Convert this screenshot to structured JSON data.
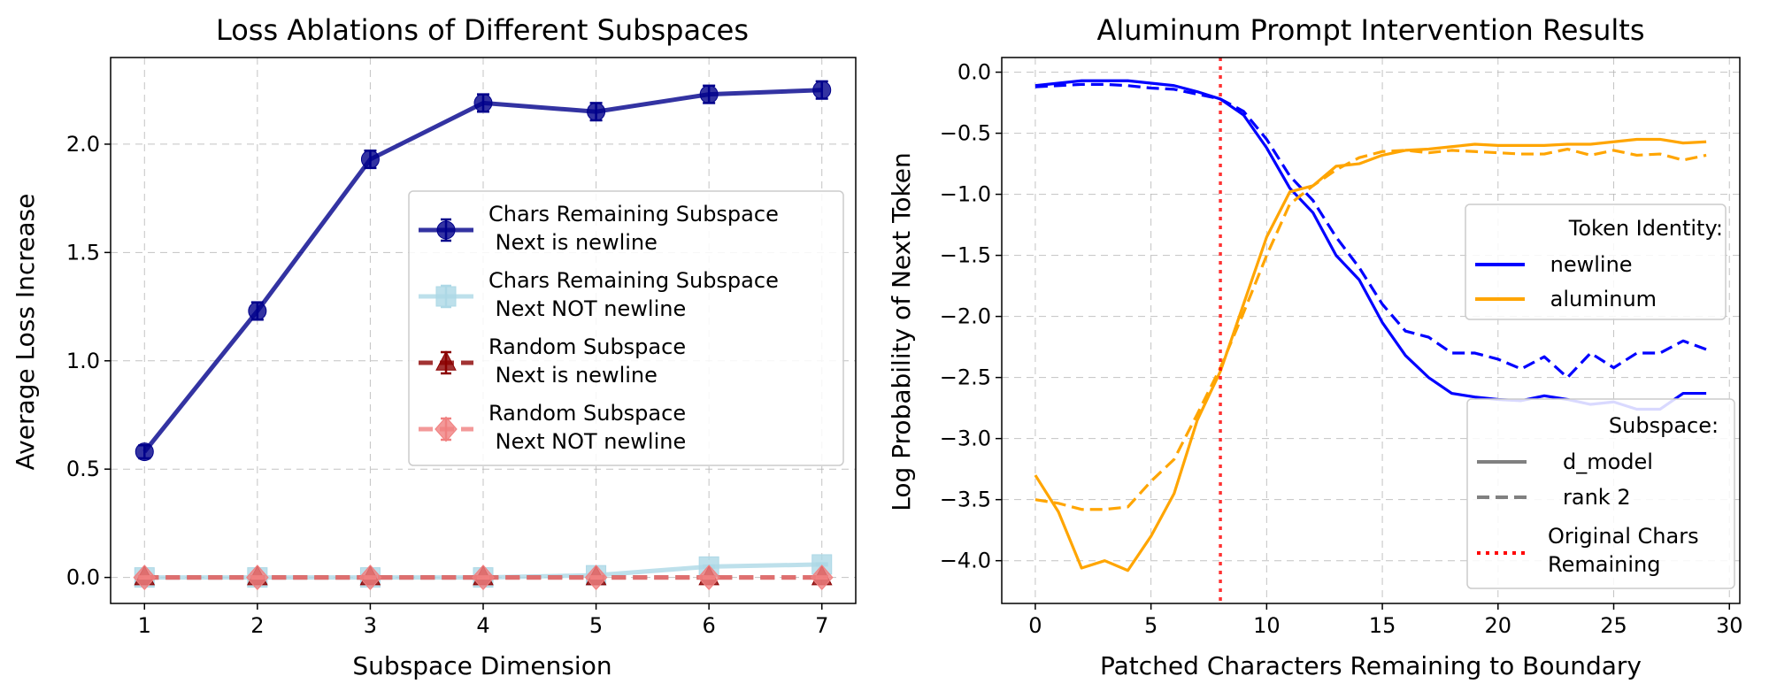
{
  "colors": {
    "chars_newline": "#00008b",
    "chars_not_newline": "#add8e6",
    "random_newline": "#8b0000",
    "random_not_newline": "#f08080",
    "newline": "#0000ff",
    "aluminum": "#ffa500",
    "subspace_legend": "#808080",
    "boundary": "#ff0000"
  },
  "chart_data": [
    {
      "type": "line",
      "title": "Loss Ablations of Different Subspaces",
      "xlabel": "Subspace Dimension",
      "ylabel": "Average Loss Increase",
      "xlim": [
        0.7,
        7.3
      ],
      "ylim": [
        -0.12,
        2.4
      ],
      "xticks": [
        "1",
        "2",
        "3",
        "4",
        "5",
        "6",
        "7"
      ],
      "yticks": [
        "0.0",
        "0.5",
        "1.0",
        "1.5",
        "2.0"
      ],
      "grid": true,
      "legend_position": "center-right",
      "x": [
        1,
        2,
        3,
        4,
        5,
        6,
        7
      ],
      "series": [
        {
          "name": "Chars Remaining Subspace\n Next is newline",
          "legend_lines": [
            "Chars Remaining Subspace",
            " Next is newline"
          ],
          "values": [
            0.58,
            1.23,
            1.93,
            2.19,
            2.15,
            2.23,
            2.25
          ],
          "error": [
            0.03,
            0.04,
            0.04,
            0.04,
            0.04,
            0.04,
            0.04
          ],
          "marker": "circle",
          "style": "solid"
        },
        {
          "name": "Chars Remaining Subspace\n Next NOT newline",
          "legend_lines": [
            "Chars Remaining Subspace",
            " Next NOT newline"
          ],
          "values": [
            0.0,
            0.0,
            0.0,
            0.0,
            0.01,
            0.05,
            0.06
          ],
          "error": [
            0.005,
            0.005,
            0.005,
            0.005,
            0.005,
            0.005,
            0.005
          ],
          "marker": "square",
          "style": "solid"
        },
        {
          "name": "Random Subspace\n Next is newline",
          "legend_lines": [
            "Random Subspace",
            " Next is newline"
          ],
          "values": [
            0.0,
            0.0,
            0.0,
            0.0,
            0.0,
            0.0,
            0.0
          ],
          "error": [
            0.005,
            0.005,
            0.005,
            0.005,
            0.005,
            0.005,
            0.005
          ],
          "marker": "triangle",
          "style": "dashed"
        },
        {
          "name": "Random Subspace\n Next NOT newline",
          "legend_lines": [
            "Random Subspace",
            " Next NOT newline"
          ],
          "values": [
            0.0,
            0.0,
            0.0,
            0.0,
            0.0,
            0.0,
            0.0
          ],
          "error": [
            0.005,
            0.005,
            0.005,
            0.005,
            0.005,
            0.005,
            0.005
          ],
          "marker": "diamond",
          "style": "dashed"
        }
      ]
    },
    {
      "type": "line",
      "title": "Aluminum Prompt Intervention Results",
      "xlabel": "Patched Characters Remaining to Boundary",
      "ylabel": "Log Probability of Next Token",
      "xlim": [
        -1.45,
        30.45
      ],
      "ylim": [
        -4.35,
        0.12
      ],
      "xticks": [
        "0",
        "5",
        "10",
        "15",
        "20",
        "25",
        "30"
      ],
      "yticks": [
        "0.0",
        "−0.5",
        "−1.0",
        "−1.5",
        "−2.0",
        "−2.5",
        "−3.0",
        "−3.5",
        "−4.0"
      ],
      "grid": true,
      "x": [
        0,
        1,
        2,
        3,
        4,
        5,
        6,
        7,
        8,
        9,
        10,
        11,
        12,
        13,
        14,
        15,
        16,
        17,
        18,
        19,
        20,
        21,
        22,
        23,
        24,
        25,
        26,
        27,
        28,
        29
      ],
      "series": [
        {
          "name": "newline",
          "subspace": "d_model",
          "style": "solid",
          "values": [
            -0.11,
            -0.09,
            -0.07,
            -0.07,
            -0.07,
            -0.09,
            -0.11,
            -0.16,
            -0.22,
            -0.35,
            -0.62,
            -0.95,
            -1.15,
            -1.5,
            -1.7,
            -2.05,
            -2.32,
            -2.5,
            -2.63,
            -2.66,
            -2.68,
            -2.69,
            -2.65,
            -2.68,
            -2.72,
            -2.7,
            -2.76,
            -2.76,
            -2.63,
            -2.63
          ]
        },
        {
          "name": "newline",
          "subspace": "rank 2",
          "style": "dashed",
          "values": [
            -0.12,
            -0.11,
            -0.1,
            -0.1,
            -0.11,
            -0.13,
            -0.14,
            -0.18,
            -0.22,
            -0.32,
            -0.55,
            -0.85,
            -1.05,
            -1.35,
            -1.6,
            -1.9,
            -2.12,
            -2.17,
            -2.3,
            -2.3,
            -2.35,
            -2.43,
            -2.33,
            -2.5,
            -2.3,
            -2.42,
            -2.3,
            -2.3,
            -2.2,
            -2.27
          ]
        },
        {
          "name": "aluminum",
          "subspace": "d_model",
          "style": "solid",
          "values": [
            -3.3,
            -3.6,
            -4.06,
            -4.0,
            -4.08,
            -3.8,
            -3.45,
            -2.85,
            -2.45,
            -1.9,
            -1.35,
            -0.98,
            -0.93,
            -0.77,
            -0.75,
            -0.68,
            -0.64,
            -0.63,
            -0.61,
            -0.59,
            -0.6,
            -0.6,
            -0.6,
            -0.59,
            -0.59,
            -0.57,
            -0.55,
            -0.55,
            -0.58,
            -0.57
          ]
        },
        {
          "name": "aluminum",
          "subspace": "rank 2",
          "style": "dashed",
          "values": [
            -3.5,
            -3.53,
            -3.58,
            -3.58,
            -3.56,
            -3.35,
            -3.17,
            -2.8,
            -2.42,
            -1.97,
            -1.5,
            -1.08,
            -0.93,
            -0.8,
            -0.7,
            -0.65,
            -0.64,
            -0.66,
            -0.64,
            -0.65,
            -0.66,
            -0.67,
            -0.67,
            -0.63,
            -0.68,
            -0.64,
            -0.68,
            -0.67,
            -0.72,
            -0.68
          ]
        }
      ],
      "vline": {
        "x": 8,
        "label_lines": [
          "Original Chars",
          "Remaining"
        ]
      },
      "legends": {
        "token": {
          "title": "Token Identity:",
          "entries": [
            " newline",
            " aluminum"
          ]
        },
        "subspace": {
          "title": "Subspace:",
          "entries": [
            "d_model",
            "rank 2"
          ],
          "extra_lines": [
            "Original Chars",
            "Remaining"
          ]
        }
      }
    }
  ]
}
